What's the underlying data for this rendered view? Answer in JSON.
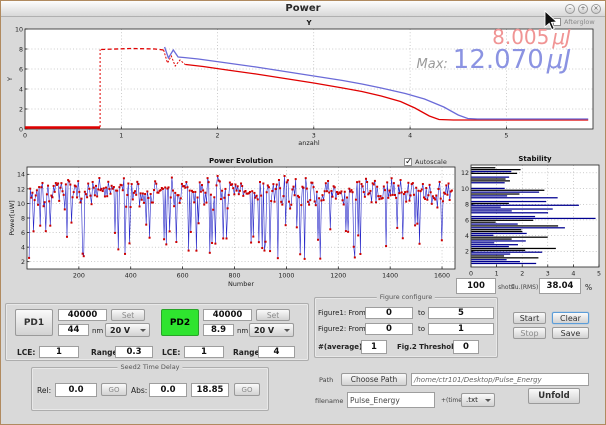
{
  "window": {
    "title": "Power",
    "btn_min": "–",
    "btn_max": "+",
    "btn_close": "×"
  },
  "top_chart": {
    "type": "line",
    "title": "Y",
    "ylabel": "Y",
    "xlabel": "anzahl",
    "x_range": [
      0,
      5.9
    ],
    "y_range": [
      0,
      10
    ],
    "x_ticks": [
      0,
      1,
      2,
      3,
      4,
      5
    ],
    "y_ticks": [
      0,
      2,
      4,
      6,
      8,
      10
    ],
    "grid": true,
    "series": [
      {
        "name": "red-baseline",
        "color": "#e00000",
        "width": 2.4,
        "dash": "none",
        "points": [
          [
            0,
            0.15
          ],
          [
            0.78,
            0.15
          ]
        ]
      },
      {
        "name": "red-rise",
        "color": "#e00000",
        "width": 1,
        "dash": "2,2",
        "points": [
          [
            0.78,
            0.2
          ],
          [
            0.78,
            7.95
          ]
        ]
      },
      {
        "name": "red-plateau",
        "color": "#e00000",
        "width": 1.3,
        "dash": "4,2.5",
        "points": [
          [
            0.79,
            7.95
          ],
          [
            1.1,
            8.05
          ],
          [
            1.35,
            8.0
          ],
          [
            1.44,
            7.9
          ]
        ]
      },
      {
        "name": "red-burst",
        "color": "#e00000",
        "width": 1,
        "dash": "2,1.5",
        "points": [
          [
            1.44,
            7.9
          ],
          [
            1.48,
            6.6
          ],
          [
            1.52,
            7.3
          ],
          [
            1.56,
            6.3
          ],
          [
            1.61,
            6.9
          ],
          [
            1.67,
            6.4
          ]
        ]
      },
      {
        "name": "red-decay",
        "color": "#e00000",
        "width": 1.3,
        "dash": "none",
        "points": [
          [
            1.67,
            6.45
          ],
          [
            1.85,
            6.25
          ],
          [
            2.1,
            5.9
          ],
          [
            2.4,
            5.5
          ],
          [
            2.7,
            5.05
          ],
          [
            3.0,
            4.6
          ],
          [
            3.3,
            4.1
          ],
          [
            3.5,
            3.75
          ],
          [
            3.7,
            3.3
          ],
          [
            3.9,
            2.75
          ],
          [
            4.05,
            2.1
          ],
          [
            4.2,
            1.3
          ],
          [
            4.3,
            0.95
          ],
          [
            4.45,
            0.9
          ],
          [
            5.85,
            0.9
          ]
        ]
      },
      {
        "name": "blue-decay",
        "color": "#6b6bd8",
        "width": 1.3,
        "dash": "none",
        "points": [
          [
            1.45,
            8.2
          ],
          [
            1.49,
            7.1
          ],
          [
            1.54,
            7.9
          ],
          [
            1.59,
            7.2
          ],
          [
            1.65,
            7.15
          ],
          [
            1.8,
            7.0
          ],
          [
            2.1,
            6.6
          ],
          [
            2.4,
            6.2
          ],
          [
            2.7,
            5.75
          ],
          [
            3.0,
            5.3
          ],
          [
            3.3,
            4.85
          ],
          [
            3.5,
            4.5
          ],
          [
            3.7,
            4.1
          ],
          [
            3.95,
            3.55
          ],
          [
            4.15,
            3.0
          ],
          [
            4.35,
            2.2
          ],
          [
            4.5,
            1.4
          ],
          [
            4.6,
            1.05
          ],
          [
            4.7,
            1.0
          ],
          [
            5.85,
            1.0
          ]
        ]
      }
    ],
    "readout": {
      "red_value": "8.005",
      "red_unit": "μJ",
      "max_label": "Max:",
      "blue_value": "12.070",
      "blue_unit": "μJ"
    },
    "checkbox": {
      "label": "Afterglow",
      "checked": false
    }
  },
  "evolution_chart": {
    "type": "line+scatter",
    "title": "Power Evolution",
    "xlabel": "Number",
    "ylabel": "Power[uW]",
    "x_range": [
      0,
      1650
    ],
    "y_range": [
      1,
      15
    ],
    "x_ticks": [
      200,
      400,
      600,
      800,
      1000,
      1200,
      1400,
      1600
    ],
    "y_ticks": [
      2,
      4,
      6,
      8,
      10,
      12,
      14
    ],
    "grid": true,
    "gen": {
      "n": 380,
      "base": 11.5,
      "jitter": 2.4,
      "spike_prob": 0.16,
      "spike_min": 2.2,
      "spike_max": 7.4,
      "seed": 7
    },
    "line_color": "#2828c8",
    "marker_color": "#cc0000",
    "checkbox": {
      "label": "Autoscale",
      "checked": true
    }
  },
  "stability_chart": {
    "type": "hbar",
    "title": "Stability",
    "x_range": [
      0,
      5
    ],
    "y_range": [
      0,
      13
    ],
    "x_ticks": [
      0,
      1,
      2,
      3,
      4,
      5
    ],
    "y_ticks": [
      2,
      4,
      6,
      8,
      10,
      12
    ],
    "grid": true,
    "gen": {
      "n": 52,
      "seed": 11
    },
    "bar_colors": [
      "#000000",
      "#000090"
    ]
  },
  "rms_row": {
    "shots_value": "100",
    "shots_label": "shots",
    "rms_label": "flu.(RMS):",
    "rms_value": "38.04",
    "percent": "%"
  },
  "pd_panel": {
    "pd1": {
      "name": "PD1",
      "gain": "40000",
      "set": "Set",
      "wavelength": "44",
      "nm": "nm",
      "voltage": "20 V",
      "lce_label": "LCE:",
      "lce": "1",
      "range_label": "Range:",
      "range": "0.3"
    },
    "pd2": {
      "name": "PD2",
      "gain": "40000",
      "set": "Set",
      "wavelength": "8.9",
      "nm": "nm",
      "voltage": "20 V",
      "lce_label": "LCE:",
      "lce": "1",
      "range_label": "Range:",
      "range": "4"
    }
  },
  "seed_panel": {
    "title": "Seed2 Time Delay",
    "rel_label": "Rel:",
    "rel_value": "0.0",
    "go1": "GO",
    "abs_label": "Abs:",
    "abs_value": "0.0",
    "abs_pos": "18.85",
    "go2": "GO"
  },
  "figure_panel": {
    "title": "Figure configure",
    "fig1_label": "Figure1: From",
    "fig1_from": "0",
    "to1": "to",
    "fig1_to": "5",
    "fig2_label": "Figure2: From",
    "fig2_from": "0",
    "to2": "to",
    "fig2_to": "1",
    "avg_label": "#(average):",
    "avg_value": "1",
    "thr_label": "Fig.2 Threshold:",
    "thr_value": "0"
  },
  "actions": {
    "start": "Start",
    "stop": "Stop",
    "clear": "Clear",
    "save": "Save"
  },
  "file_panel": {
    "path_label": "Path",
    "choose_btn": "Choose Path",
    "path_value": "/home/ctr101/Desktop/Pulse_Energy",
    "filename_label": "filename",
    "filename_value": "Pulse_Energy",
    "time_label": "+(time)",
    "ext_value": ".txt",
    "unfold_btn": "Unfold"
  }
}
